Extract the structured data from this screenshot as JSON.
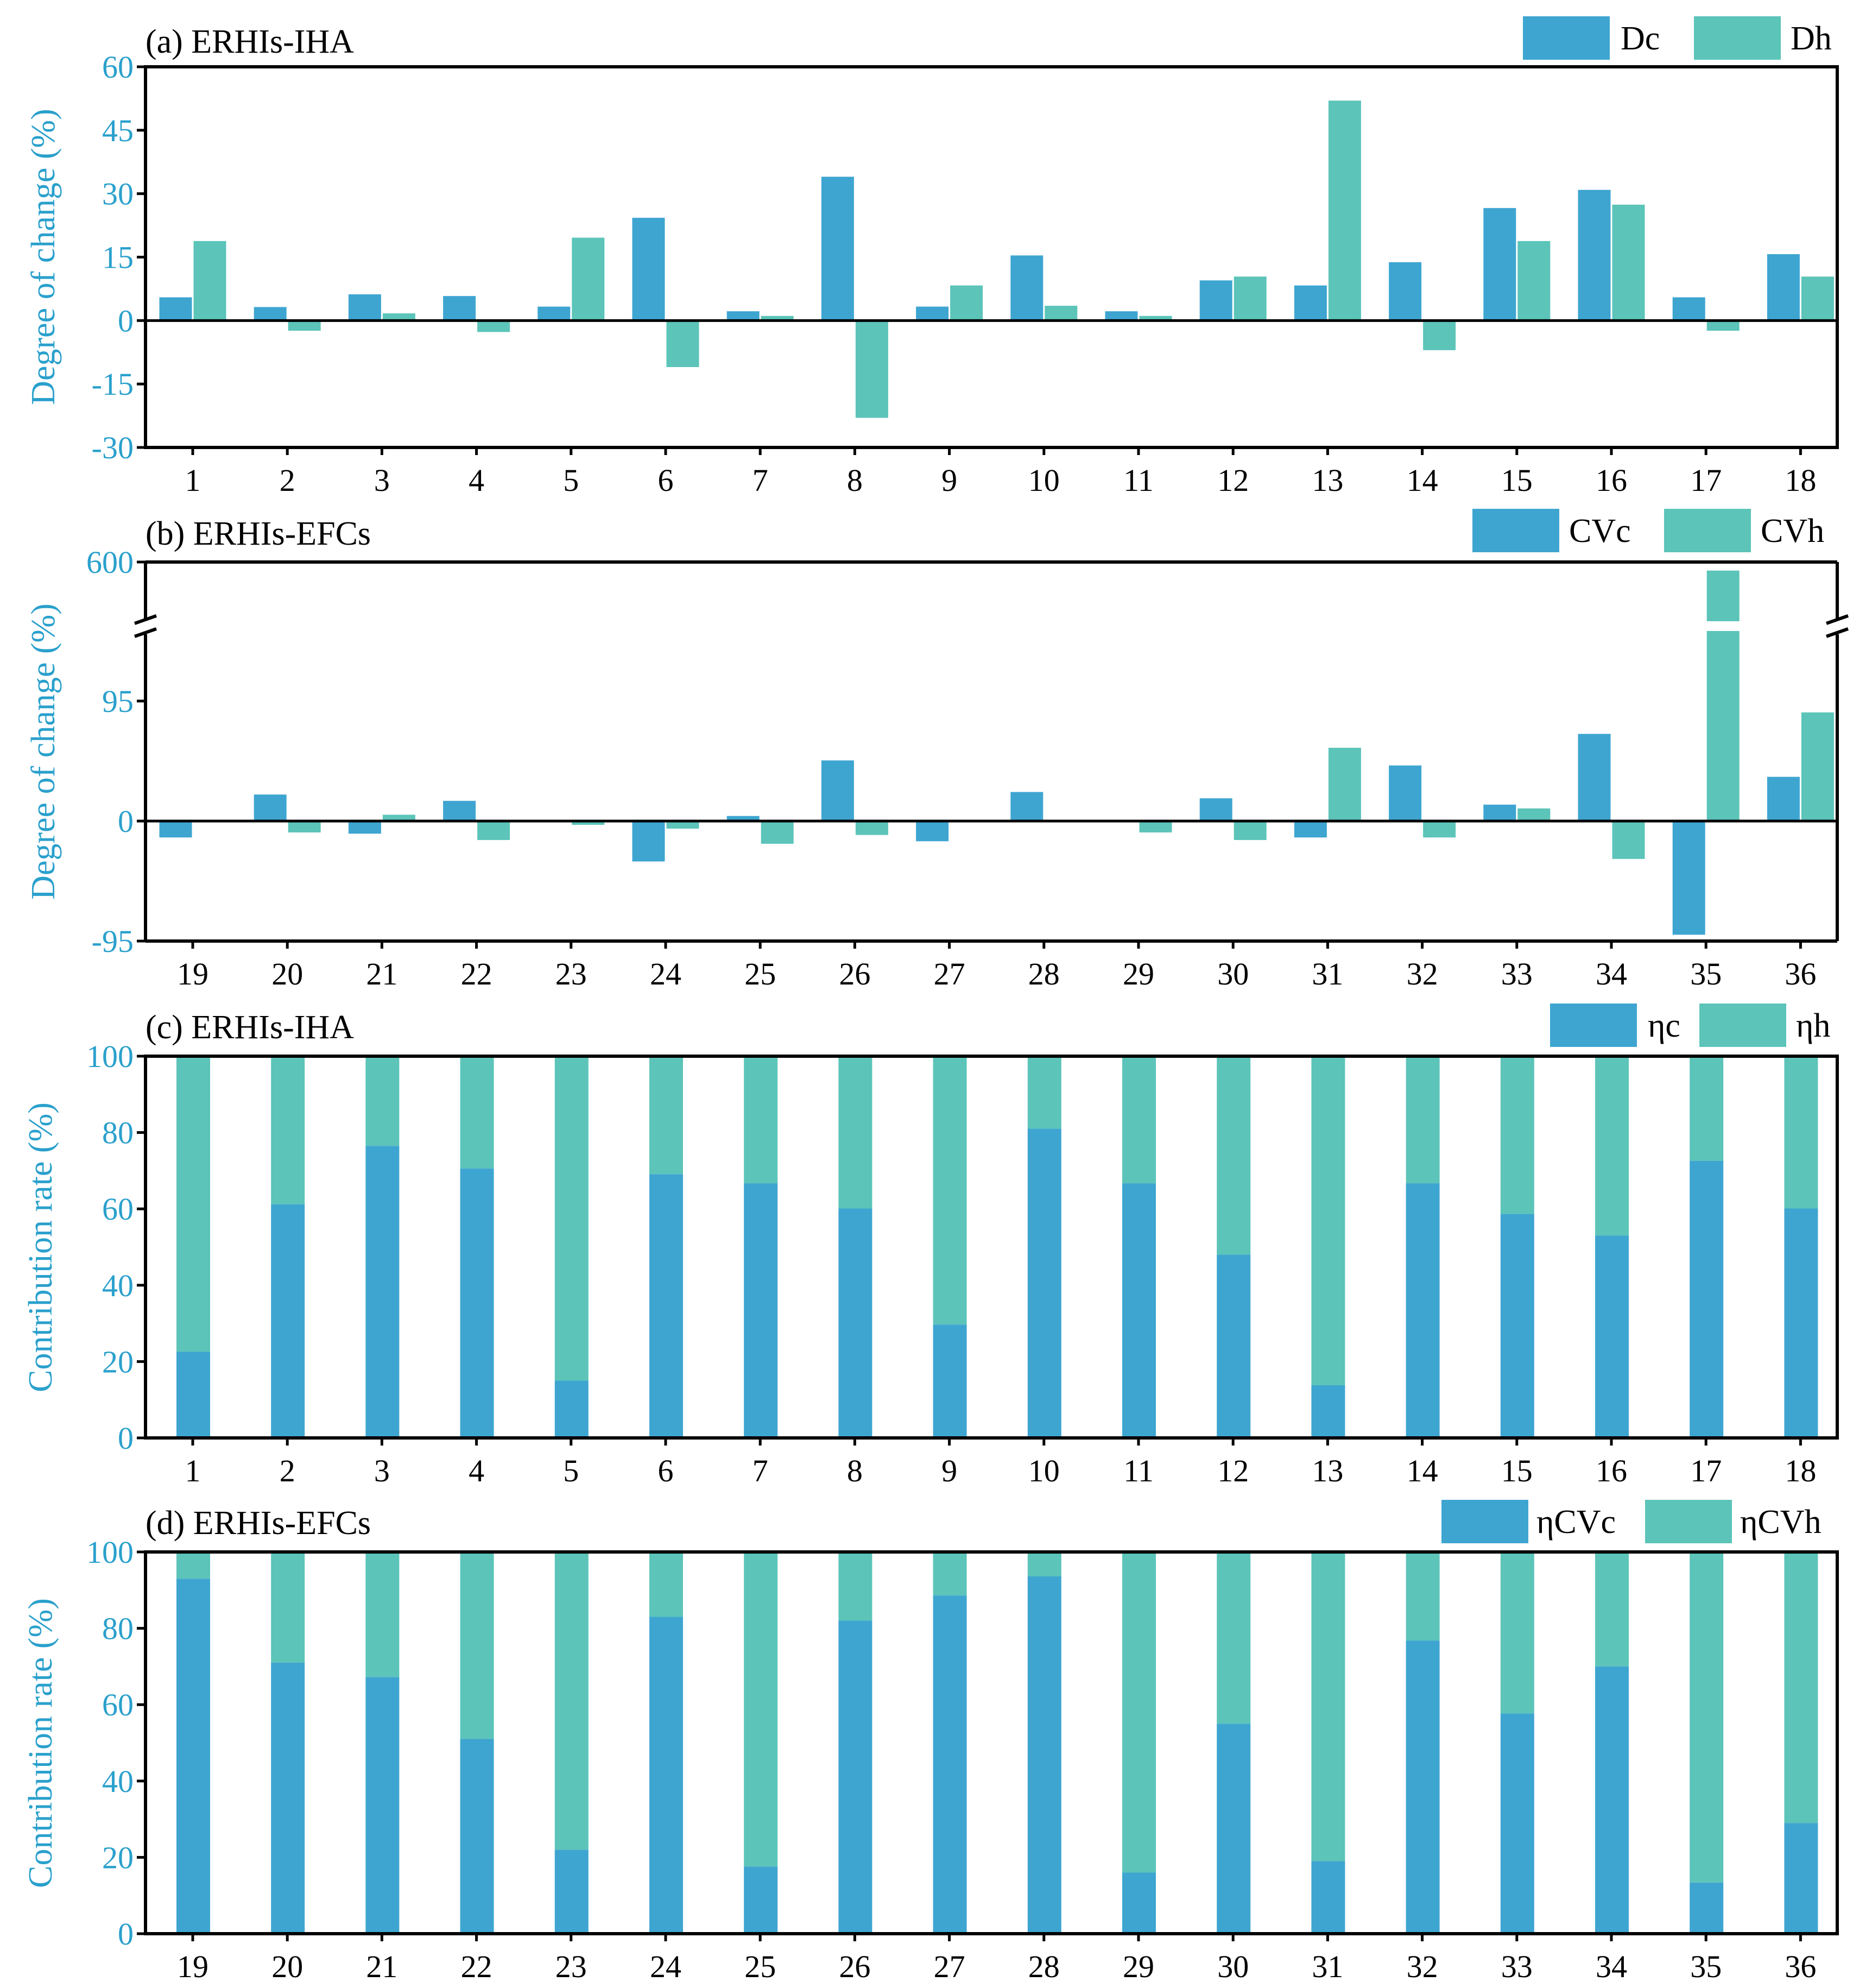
{
  "colors": {
    "primary": "#3ea5d1",
    "secondary": "#5cc4b9",
    "ytick": "#2aa0cc",
    "axis": "#000000"
  },
  "chart_data": [
    {
      "id": "a",
      "type": "bar",
      "title": "(a) ERHIs-IHA",
      "ylabel": "Degree of change (%)",
      "ylim": [
        -30,
        60
      ],
      "yticks": [
        "-30",
        "-15",
        "0",
        "15",
        "30",
        "45",
        "60"
      ],
      "categories": [
        "1",
        "2",
        "3",
        "4",
        "5",
        "6",
        "7",
        "8",
        "9",
        "10",
        "11",
        "12",
        "13",
        "14",
        "15",
        "16",
        "17",
        "18"
      ],
      "series": [
        {
          "name": "Dc",
          "values": [
            5.5,
            3.2,
            6.2,
            5.8,
            3.3,
            24.3,
            2.2,
            34.0,
            3.3,
            15.4,
            2.2,
            9.5,
            8.3,
            13.8,
            26.6,
            30.9,
            5.5,
            15.7
          ]
        },
        {
          "name": "Dh",
          "values": [
            18.8,
            -2.4,
            1.7,
            -2.7,
            19.6,
            -11.0,
            1.1,
            -23.0,
            8.3,
            3.5,
            1.1,
            10.4,
            52.0,
            -7.0,
            18.8,
            27.4,
            -2.4,
            10.4
          ]
        }
      ]
    },
    {
      "id": "b",
      "type": "bar",
      "title": "(b) ERHIs-EFCs",
      "ylabel": "Degree of change (%)",
      "ylim": [
        -95,
        600
      ],
      "yticks": [
        "-95",
        "0",
        "95",
        "600"
      ],
      "axis_break": true,
      "categories": [
        "19",
        "20",
        "21",
        "22",
        "23",
        "24",
        "25",
        "26",
        "27",
        "28",
        "29",
        "30",
        "31",
        "32",
        "33",
        "34",
        "35",
        "36"
      ],
      "series": [
        {
          "name": "CVc",
          "values": [
            -13,
            21,
            -10,
            16,
            0,
            -32,
            4,
            48,
            -16,
            23,
            0,
            18,
            -13,
            44,
            13,
            69,
            -90,
            35
          ]
        },
        {
          "name": "CVh",
          "values": [
            0,
            -9,
            5,
            -15,
            -3,
            -6,
            -18,
            -11,
            0,
            0,
            -9,
            -15,
            58,
            -13,
            10,
            -30,
            570,
            86
          ]
        }
      ]
    },
    {
      "id": "c",
      "type": "bar",
      "stacked": true,
      "title": "(c) ERHIs-IHA",
      "ylabel": "Contribution rate (%)",
      "ylim": [
        0,
        100
      ],
      "yticks": [
        "0",
        "20",
        "40",
        "60",
        "80",
        "100"
      ],
      "categories": [
        "1",
        "2",
        "3",
        "4",
        "5",
        "6",
        "7",
        "8",
        "9",
        "10",
        "11",
        "12",
        "13",
        "14",
        "15",
        "16",
        "17",
        "18"
      ],
      "series": [
        {
          "name": "ηc",
          "values": [
            22.6,
            61.2,
            76.5,
            70.6,
            15.0,
            69.1,
            66.7,
            60.1,
            29.7,
            81.0,
            66.7,
            48.0,
            13.8,
            66.7,
            58.7,
            53.0,
            72.6,
            60.1
          ]
        },
        {
          "name": "ηh",
          "values": [
            77.4,
            38.8,
            23.5,
            29.4,
            85.0,
            30.9,
            33.3,
            39.9,
            70.3,
            19.0,
            33.3,
            52.0,
            86.2,
            33.3,
            41.3,
            47.0,
            27.4,
            39.9
          ]
        }
      ]
    },
    {
      "id": "d",
      "type": "bar",
      "stacked": true,
      "title": "(d) ERHIs-EFCs",
      "ylabel": "Contribution rate (%)",
      "ylim": [
        0,
        100
      ],
      "yticks": [
        "0",
        "20",
        "40",
        "60",
        "80",
        "100"
      ],
      "categories": [
        "19",
        "20",
        "21",
        "22",
        "23",
        "24",
        "25",
        "26",
        "27",
        "28",
        "29",
        "30",
        "31",
        "32",
        "33",
        "34",
        "35",
        "36"
      ],
      "series": [
        {
          "name": "ηCVc",
          "values": [
            93.0,
            71.0,
            67.2,
            51.0,
            22.0,
            83.0,
            17.6,
            82.0,
            88.6,
            93.6,
            16.0,
            55.0,
            19.0,
            76.8,
            57.7,
            70.0,
            13.4,
            29.0
          ]
        },
        {
          "name": "ηCVh",
          "values": [
            7.0,
            29.0,
            32.8,
            49.0,
            78.0,
            17.0,
            82.4,
            18.0,
            11.4,
            6.4,
            84.0,
            45.0,
            81.0,
            23.2,
            42.3,
            30.0,
            86.6,
            71.0
          ]
        }
      ]
    }
  ]
}
